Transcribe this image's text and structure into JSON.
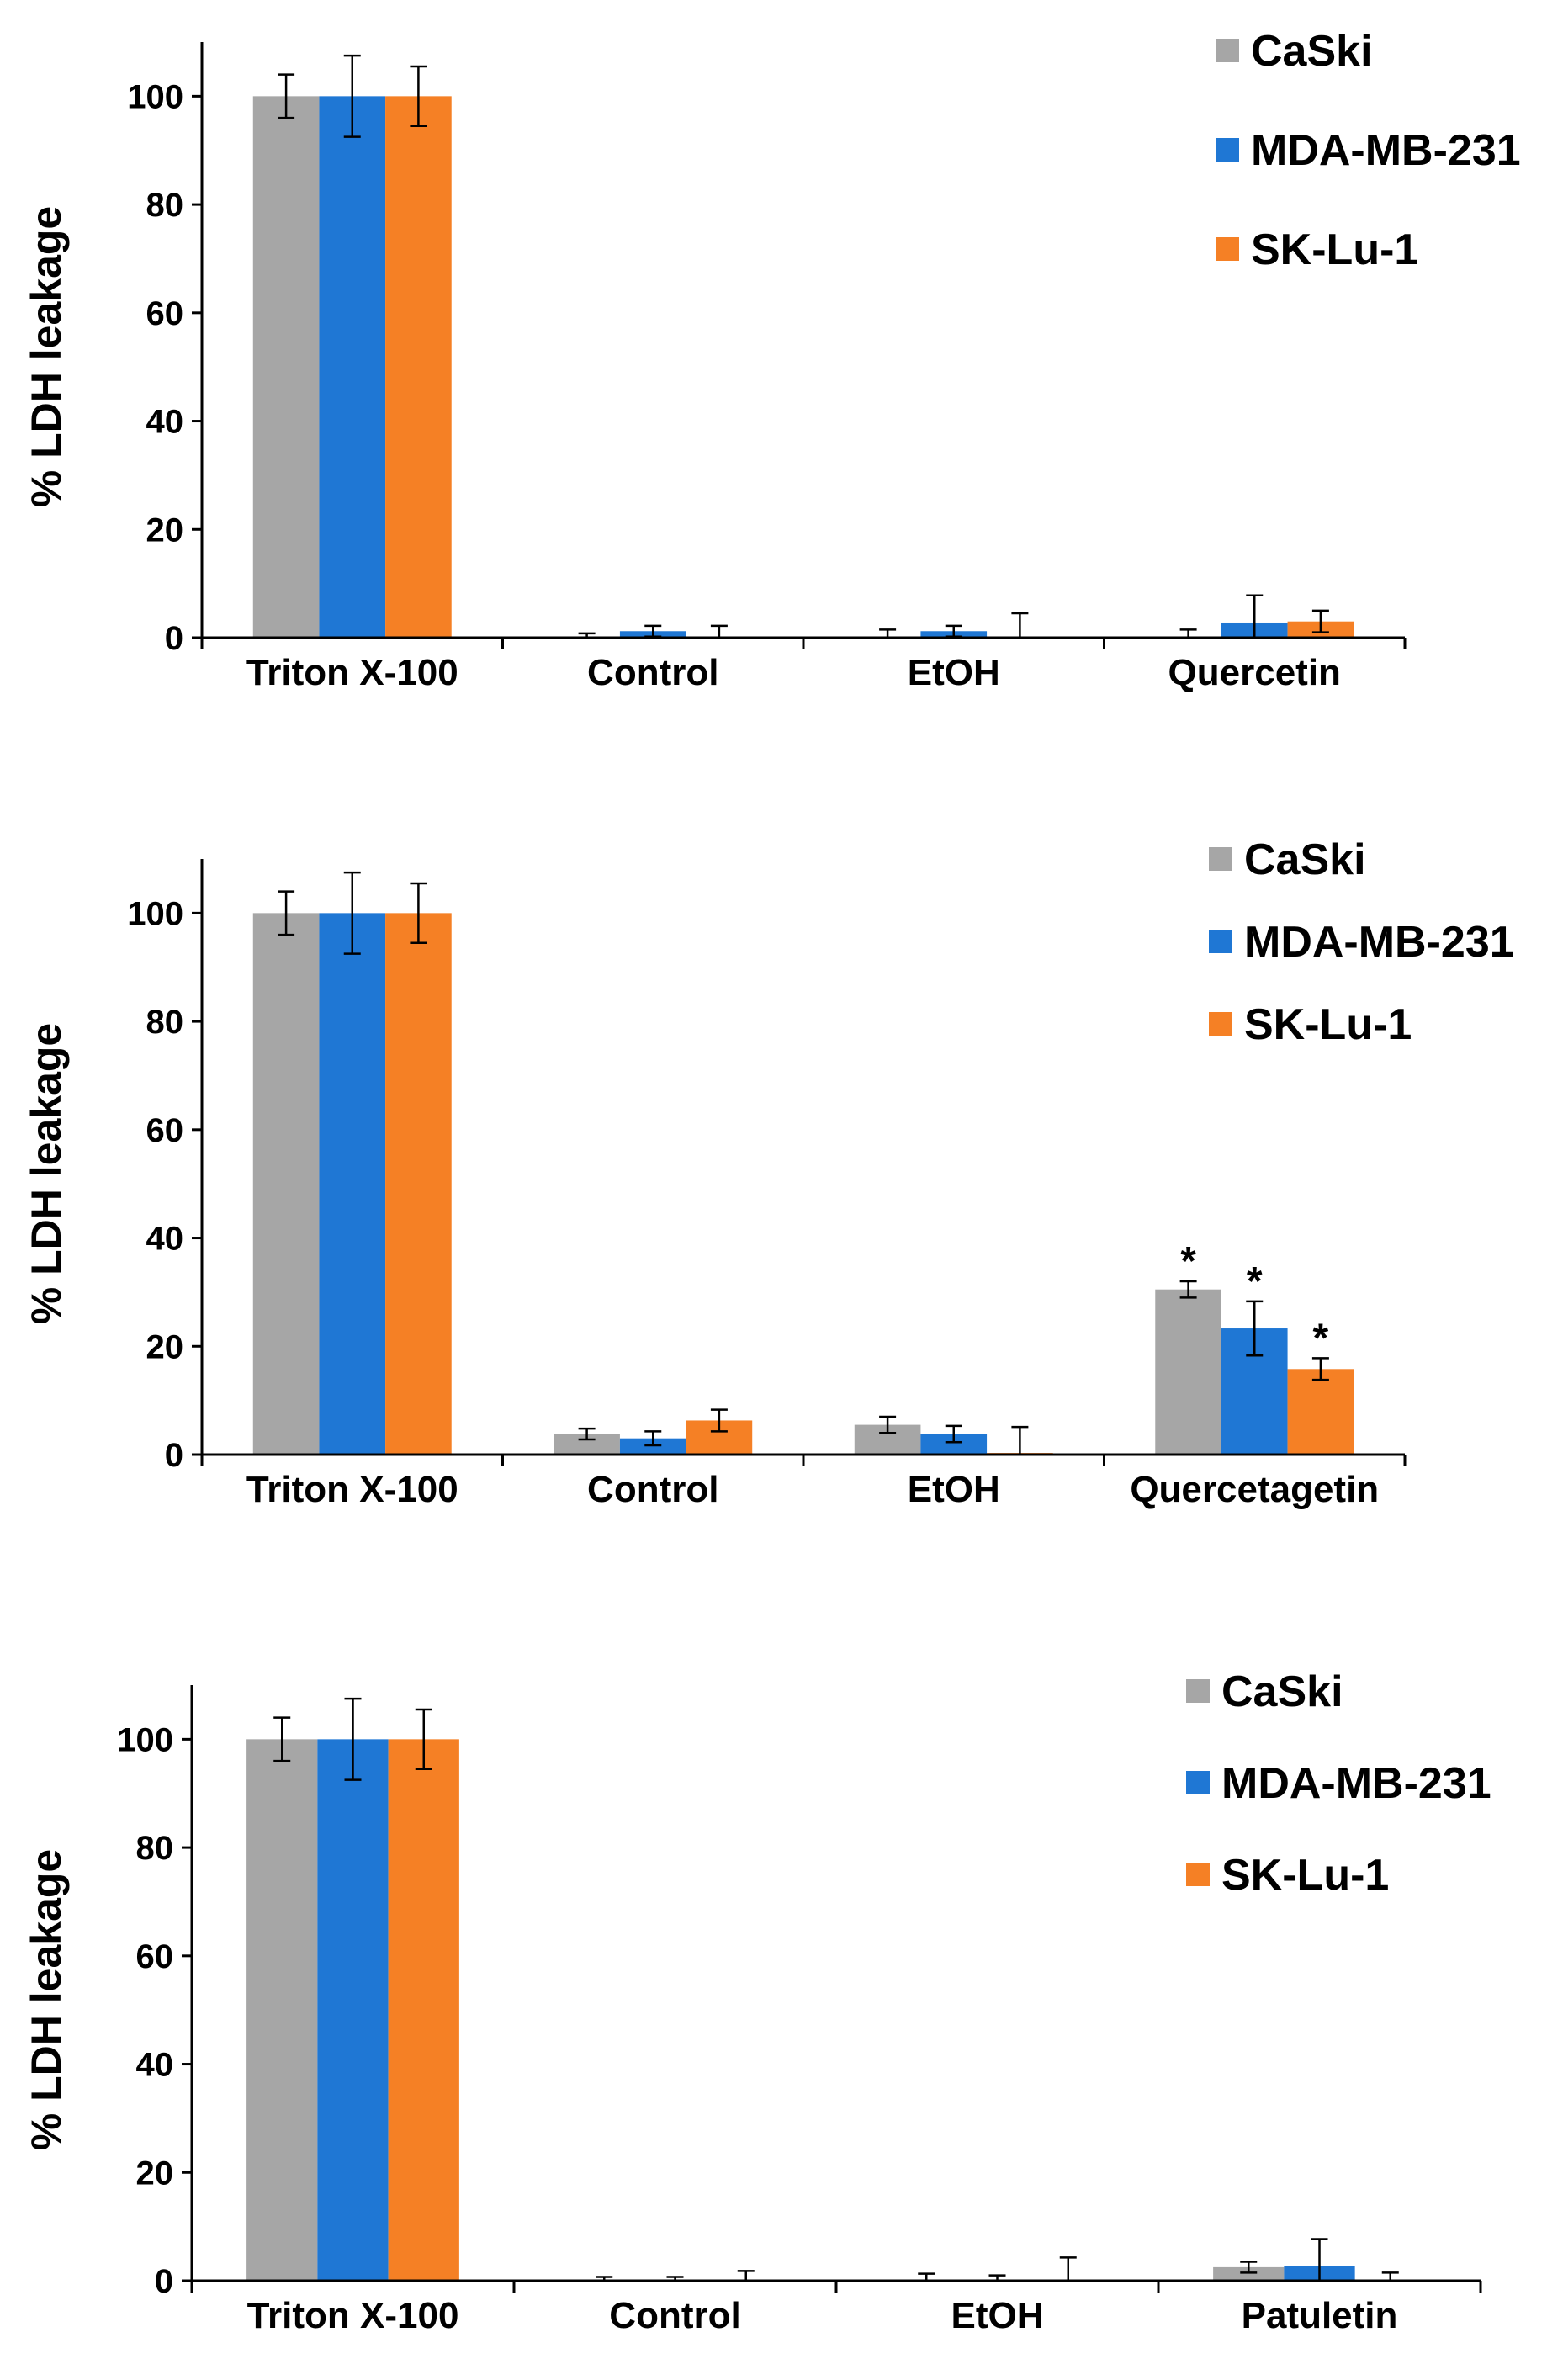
{
  "chart_data": [
    {
      "type": "bar",
      "title": "",
      "xlabel": "",
      "ylabel": "% LDH leakage",
      "ylim": [
        0,
        110
      ],
      "yticks": [
        0,
        20,
        40,
        60,
        80,
        100
      ],
      "categories": [
        "Triton X-100",
        "Control",
        "EtOH",
        "Quercetin"
      ],
      "legend_position": "top-right",
      "series": [
        {
          "name": "CaSki",
          "color": "#a6a6a6",
          "values": [
            100,
            0,
            0,
            0
          ],
          "errors": [
            4,
            0.8,
            1.5,
            1.5
          ]
        },
        {
          "name": "MDA-MB-231",
          "color": "#1f77d4",
          "values": [
            100,
            1.2,
            1.2,
            2.8
          ],
          "errors": [
            7.5,
            1.0,
            1.0,
            5.0
          ]
        },
        {
          "name": "SK-Lu-1",
          "color": "#f58025",
          "values": [
            100,
            0,
            0,
            3.0
          ],
          "errors": [
            5.5,
            2.2,
            4.5,
            2.0
          ]
        }
      ],
      "significance": []
    },
    {
      "type": "bar",
      "title": "",
      "xlabel": "",
      "ylabel": "% LDH leakage",
      "ylim": [
        0,
        110
      ],
      "yticks": [
        0,
        20,
        40,
        60,
        80,
        100
      ],
      "categories": [
        "Triton X-100",
        "Control",
        "EtOH",
        "Quercetagetin"
      ],
      "legend_position": "top-right",
      "series": [
        {
          "name": "CaSki",
          "color": "#a6a6a6",
          "values": [
            100,
            3.8,
            5.5,
            30.5
          ],
          "errors": [
            4,
            1.0,
            1.5,
            1.5
          ]
        },
        {
          "name": "MDA-MB-231",
          "color": "#1f77d4",
          "values": [
            100,
            3.0,
            3.8,
            23.3
          ],
          "errors": [
            7.5,
            1.3,
            1.5,
            5.0
          ]
        },
        {
          "name": "SK-Lu-1",
          "color": "#f58025",
          "values": [
            100,
            6.3,
            0.3,
            15.8
          ],
          "errors": [
            5.5,
            2.0,
            4.8,
            2.0
          ]
        }
      ],
      "significance": [
        {
          "category": 3,
          "series": 0,
          "label": "*"
        },
        {
          "category": 3,
          "series": 1,
          "label": "*"
        },
        {
          "category": 3,
          "series": 2,
          "label": "*"
        }
      ]
    },
    {
      "type": "bar",
      "title": "",
      "xlabel": "",
      "ylabel": "% LDH leakage",
      "ylim": [
        0,
        110
      ],
      "yticks": [
        0,
        20,
        40,
        60,
        80,
        100
      ],
      "categories": [
        "Triton X-100",
        "Control",
        "EtOH",
        "Patuletin"
      ],
      "legend_position": "top-right",
      "series": [
        {
          "name": "CaSki",
          "color": "#a6a6a6",
          "values": [
            100,
            0,
            0,
            2.5
          ],
          "errors": [
            4,
            0.7,
            1.3,
            1.0
          ]
        },
        {
          "name": "MDA-MB-231",
          "color": "#1f77d4",
          "values": [
            100,
            0,
            0,
            2.7
          ],
          "errors": [
            7.5,
            0.7,
            1.0,
            5.0
          ]
        },
        {
          "name": "SK-Lu-1",
          "color": "#f58025",
          "values": [
            100,
            0,
            0,
            0
          ],
          "errors": [
            5.5,
            1.8,
            4.3,
            1.5
          ]
        }
      ],
      "significance": []
    }
  ]
}
